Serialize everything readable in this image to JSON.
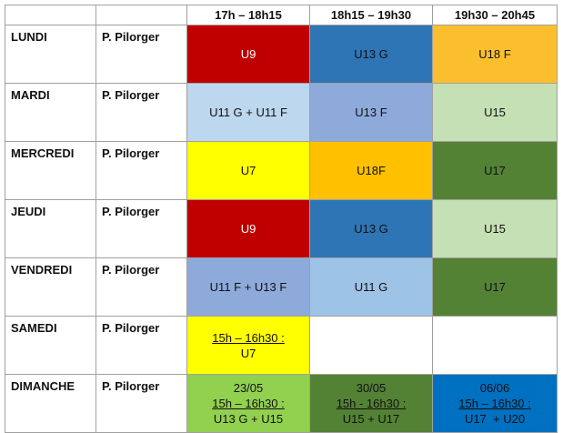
{
  "header": {
    "slots": [
      "17h – 18h15",
      "18h15 – 19h30",
      "19h30 – 20h45"
    ]
  },
  "rows": [
    {
      "day": "LUNDI",
      "coach": "P. Pilorger",
      "cells": [
        [
          "U9"
        ],
        [
          "U13 G"
        ],
        [
          "U18 F"
        ]
      ]
    },
    {
      "day": "MARDI",
      "coach": "P. Pilorger",
      "cells": [
        [
          "U11 G + U11 F"
        ],
        [
          "U13 F"
        ],
        [
          "U15"
        ]
      ]
    },
    {
      "day": "MERCREDI",
      "coach": "P. Pilorger",
      "cells": [
        [
          "U7"
        ],
        [
          "U18F"
        ],
        [
          "U17"
        ]
      ]
    },
    {
      "day": "JEUDI",
      "coach": "P. Pilorger",
      "cells": [
        [
          "U9"
        ],
        [
          "U13 G"
        ],
        [
          "U15"
        ]
      ]
    },
    {
      "day": "VENDREDI",
      "coach": "P. Pilorger",
      "cells": [
        [
          "U11 F + U13 F"
        ],
        [
          "U11 G"
        ],
        [
          "U17"
        ]
      ]
    },
    {
      "day": "SAMEDI",
      "coach": "P. Pilorger",
      "cells": [
        [
          "15h – 16h30 :",
          "U7"
        ],
        [],
        []
      ]
    },
    {
      "day": "DIMANCHE",
      "coach": "P. Pilorger",
      "cells": [
        [
          "23/05",
          "15h – 16h30 :",
          "U13 G + U15"
        ],
        [
          "30/05",
          "15h - 16h30 :",
          "U15 + U17"
        ],
        [
          "06/06",
          "15h – 16h30 :",
          "U17  + U20"
        ]
      ]
    }
  ]
}
